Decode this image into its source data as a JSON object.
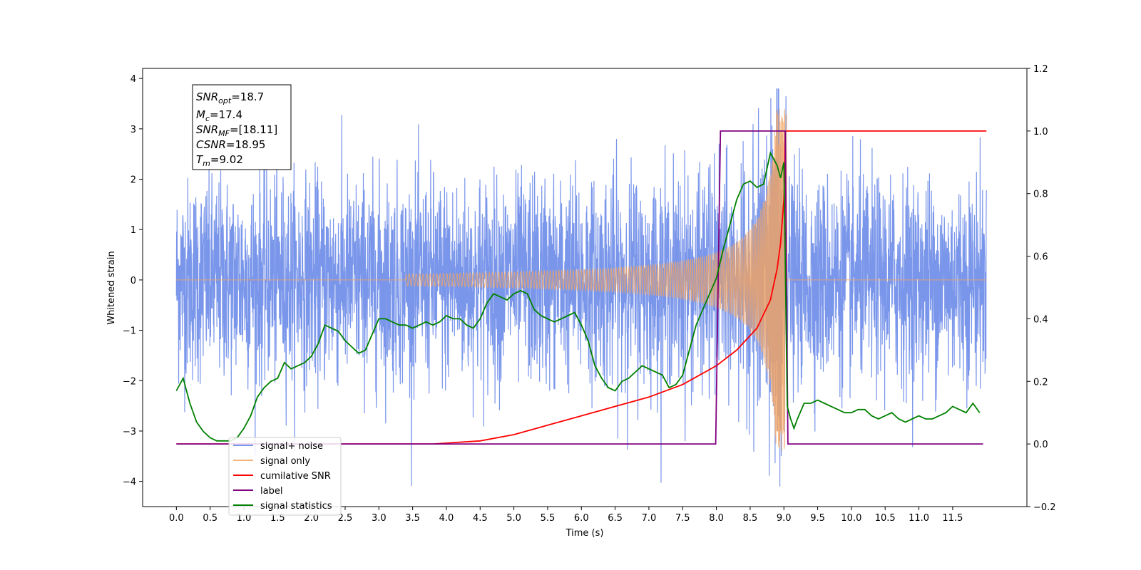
{
  "chart_data": {
    "type": "line",
    "xlabel": "Time (s)",
    "ylabel": "Whitened strain",
    "xlim": [
      -0.5,
      12.6
    ],
    "ylim": [
      -4.5,
      4.2
    ],
    "ylim_right": [
      -0.2,
      1.2
    ],
    "x_ticks": [
      "0.0",
      "0.5",
      "1.0",
      "1.5",
      "2.0",
      "2.5",
      "3.0",
      "3.5",
      "4.0",
      "4.5",
      "5.0",
      "5.5",
      "6.0",
      "6.5",
      "7.0",
      "7.5",
      "8.0",
      "8.5",
      "9.0",
      "9.5",
      "10.0",
      "10.5",
      "11.0",
      "11.5"
    ],
    "y_ticks_left": [
      "4",
      "3",
      "2",
      "1",
      "0",
      "−1",
      "−2",
      "−3",
      "−4"
    ],
    "y_ticks_right": [
      "1.2",
      "1.0",
      "0.8",
      "0.6",
      "0.4",
      "0.2",
      "0.0",
      "−0.2"
    ],
    "grid": false,
    "legend_position": "lower-left",
    "info_box": {
      "lines": [
        {
          "sym": "SNR",
          "sub": "opt",
          "value": "=18.7"
        },
        {
          "sym": "M",
          "sub": "c",
          "value": "=17.4"
        },
        {
          "sym": "SNR",
          "sub": "MF",
          "value": "=[18.11]"
        },
        {
          "sym": "CSNR",
          "sub": "",
          "value": "=18.95"
        },
        {
          "sym": "T",
          "sub": "m",
          "value": "=9.02"
        }
      ]
    },
    "series": [
      {
        "name": "signal+ noise",
        "axis": "left",
        "color": "#4169e1",
        "description_values": {
          "x_range": [
            0,
            12
          ],
          "y_extent": [
            -4.1,
            3.8
          ],
          "noise_sigma": 1.0
        }
      },
      {
        "name": "signal only",
        "axis": "left",
        "color": "#f4a460",
        "description_values": {
          "chirp_start": 3.5,
          "merger_time": 9.02,
          "peak_amplitude": 3.4
        }
      },
      {
        "name": "cumilative SNR",
        "axis": "right",
        "x": [
          0.0,
          3.8,
          4.5,
          5.0,
          5.5,
          6.0,
          6.5,
          7.0,
          7.5,
          8.0,
          8.3,
          8.6,
          8.8,
          8.9,
          8.95,
          9.0,
          9.01,
          9.02,
          9.03,
          12.0
        ],
        "y": [
          0.0,
          0.0,
          0.01,
          0.03,
          0.06,
          0.09,
          0.12,
          0.15,
          0.19,
          0.25,
          0.3,
          0.37,
          0.46,
          0.56,
          0.64,
          0.78,
          0.85,
          1.0,
          1.0,
          1.0
        ]
      },
      {
        "name": "label",
        "axis": "right",
        "x": [
          0.0,
          7.99,
          8.06,
          9.0,
          9.02,
          9.06,
          11.95
        ],
        "y": [
          0.0,
          0.0,
          1.0,
          1.0,
          1.0,
          0.0,
          0.0
        ]
      },
      {
        "name": "signal statistics",
        "axis": "right",
        "x": [
          0.0,
          0.1,
          0.2,
          0.3,
          0.4,
          0.5,
          0.6,
          0.7,
          0.8,
          0.9,
          1.0,
          1.1,
          1.2,
          1.3,
          1.4,
          1.5,
          1.6,
          1.7,
          1.8,
          1.9,
          2.0,
          2.1,
          2.2,
          2.3,
          2.4,
          2.5,
          2.6,
          2.7,
          2.8,
          2.9,
          3.0,
          3.1,
          3.2,
          3.3,
          3.4,
          3.5,
          3.6,
          3.7,
          3.8,
          3.9,
          4.0,
          4.1,
          4.2,
          4.3,
          4.4,
          4.5,
          4.6,
          4.7,
          4.8,
          4.9,
          5.0,
          5.1,
          5.2,
          5.3,
          5.4,
          5.5,
          5.6,
          5.7,
          5.8,
          5.9,
          6.0,
          6.1,
          6.2,
          6.3,
          6.4,
          6.5,
          6.6,
          6.7,
          6.8,
          6.9,
          7.0,
          7.1,
          7.2,
          7.3,
          7.4,
          7.5,
          7.6,
          7.7,
          7.8,
          7.9,
          8.0,
          8.1,
          8.2,
          8.3,
          8.4,
          8.5,
          8.6,
          8.7,
          8.8,
          8.9,
          8.95,
          9.0,
          9.05,
          9.1,
          9.15,
          9.2,
          9.3,
          9.4,
          9.5,
          9.6,
          9.7,
          9.8,
          9.9,
          10.0,
          10.1,
          10.2,
          10.3,
          10.4,
          10.5,
          10.6,
          10.7,
          10.8,
          10.9,
          11.0,
          11.1,
          11.2,
          11.3,
          11.4,
          11.5,
          11.6,
          11.7,
          11.8,
          11.9
        ],
        "y": [
          0.17,
          0.21,
          0.13,
          0.07,
          0.04,
          0.02,
          0.01,
          0.01,
          0.01,
          0.02,
          0.05,
          0.09,
          0.15,
          0.18,
          0.2,
          0.21,
          0.26,
          0.24,
          0.25,
          0.26,
          0.28,
          0.32,
          0.38,
          0.37,
          0.36,
          0.33,
          0.31,
          0.29,
          0.3,
          0.35,
          0.4,
          0.4,
          0.39,
          0.38,
          0.38,
          0.37,
          0.38,
          0.39,
          0.38,
          0.39,
          0.41,
          0.4,
          0.4,
          0.38,
          0.37,
          0.4,
          0.45,
          0.48,
          0.47,
          0.46,
          0.48,
          0.49,
          0.48,
          0.43,
          0.41,
          0.4,
          0.39,
          0.4,
          0.41,
          0.42,
          0.38,
          0.33,
          0.25,
          0.21,
          0.18,
          0.17,
          0.2,
          0.21,
          0.23,
          0.25,
          0.24,
          0.23,
          0.22,
          0.18,
          0.19,
          0.22,
          0.3,
          0.38,
          0.43,
          0.48,
          0.53,
          0.62,
          0.7,
          0.78,
          0.83,
          0.84,
          0.82,
          0.83,
          0.93,
          0.89,
          0.85,
          0.9,
          0.12,
          0.08,
          0.05,
          0.08,
          0.13,
          0.13,
          0.14,
          0.13,
          0.12,
          0.11,
          0.1,
          0.1,
          0.11,
          0.11,
          0.09,
          0.08,
          0.09,
          0.1,
          0.08,
          0.07,
          0.08,
          0.09,
          0.08,
          0.08,
          0.09,
          0.1,
          0.12,
          0.11,
          0.1,
          0.13,
          0.1
        ]
      }
    ]
  }
}
